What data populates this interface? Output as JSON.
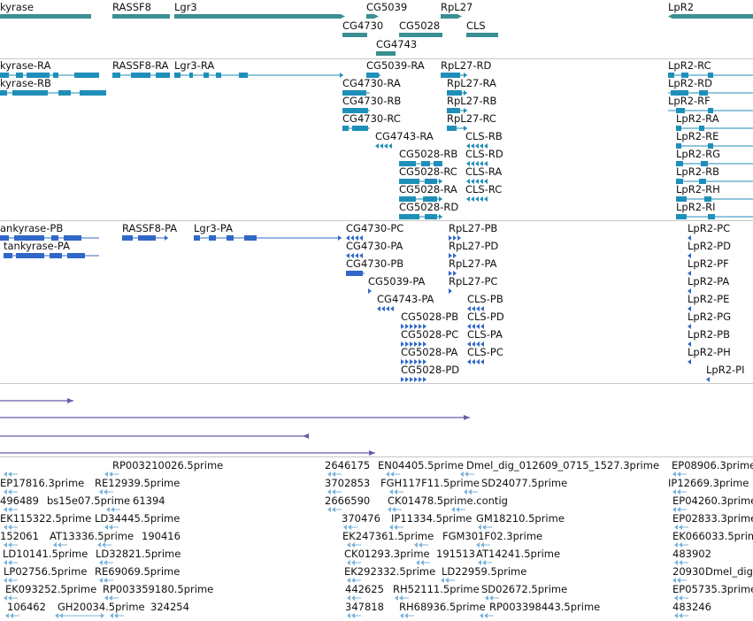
{
  "colors": {
    "gene_track": "#3a8f93",
    "transcript_track": "#1f8fb9",
    "protein_track": "#3168c7",
    "alignment_track": "#6d5aa8",
    "est_track": "#7cb3d8",
    "separator": "#c8c8c8"
  },
  "tracks": {
    "genes": {
      "labels": [
        "kyrase",
        "RASSF8",
        "Lgr3",
        "CG5039",
        "RpL27",
        "LpR2",
        "CG4730",
        "CG5028",
        "CLS",
        "CG4743"
      ]
    },
    "transcripts": {
      "labels": [
        "kyrase-RA",
        "kyrase-RB",
        "RASSF8-RA",
        "Lgr3-RA",
        "CG5039-RA",
        "RpL27-RD",
        "CG4730-RA",
        "CG4730-RB",
        "CG4730-RC",
        "RpL27-RA",
        "RpL27-RB",
        "RpL27-RC",
        "CG4743-RA",
        "CLS-RB",
        "CG5028-RB",
        "CLS-RD",
        "CG5028-RC",
        "CLS-RA",
        "CG5028-RA",
        "CLS-RC",
        "CG5028-RD",
        "LpR2-RC",
        "LpR2-RD",
        "LpR2-RF",
        "LpR2-RA",
        "LpR2-RE",
        "LpR2-RG",
        "LpR2-RB",
        "LpR2-RH",
        "LpR2-RI"
      ]
    },
    "proteins": {
      "labels": [
        "ankyrase-PB",
        "tankyrase-PA",
        "RASSF8-PA",
        "Lgr3-PA",
        "CG4730-PC",
        "CG4730-PA",
        "CG4730-PB",
        "CG5039-PA",
        "CG4743-PA",
        "RpL27-PB",
        "RpL27-PD",
        "RpL27-PA",
        "RpL27-PC",
        "CG5028-PB",
        "CG5028-PC",
        "CG5028-PA",
        "CG5028-PD",
        "CLS-PB",
        "CLS-PD",
        "CLS-PA",
        "CLS-PC",
        "LpR2-PC",
        "LpR2-PD",
        "LpR2-PF",
        "LpR2-PA",
        "LpR2-PE",
        "LpR2-PG",
        "LpR2-PB",
        "LpR2-PH",
        "LpR2-PI"
      ]
    },
    "ests": {
      "labels": [
        "RP003210026.5prime",
        "2646175",
        "EN04405.5prime",
        "Dmel_dig_012609_0715_1527.3prime",
        "EP08906.3prime",
        "EP17816.3prime",
        "RE12939.5prime",
        "3702853",
        "FGH117F11.5prime",
        "SD24077.5prime",
        "IP12669.3prime",
        "496489",
        "bs15e07.5prime",
        "61394",
        "2666590",
        "CK01478.5prime.contig",
        "EP04260.3prime",
        "EK115322.5prime",
        "LD34445.5prime",
        "370476",
        "IP11334.5prime",
        "GM18210.5prime",
        "EP02833.3prime",
        "152061",
        "AT13336.5prime",
        "190416",
        "EK247361.5prime",
        "FGM301F02.3prime",
        "EK066033.5prime",
        "LD10141.5prime",
        "LD32821.5prime",
        "CK01293.3prime",
        "191513",
        "AT14241.5prime",
        "483902",
        "LP02756.5prime",
        "RE69069.5prime",
        "EK292332.5prime",
        "LD22959.5prime",
        "20930",
        "Dmel_dig",
        "EK093252.5prime",
        "RP003359180.5prime",
        "442625",
        "RH52111.5prime",
        "SD02672.5prime",
        "EP05735.3prime",
        "106462",
        "GH20034.5prime",
        "324254",
        "347818",
        "RH68936.5prime",
        "RP003398443.5prime",
        "483246"
      ]
    }
  }
}
